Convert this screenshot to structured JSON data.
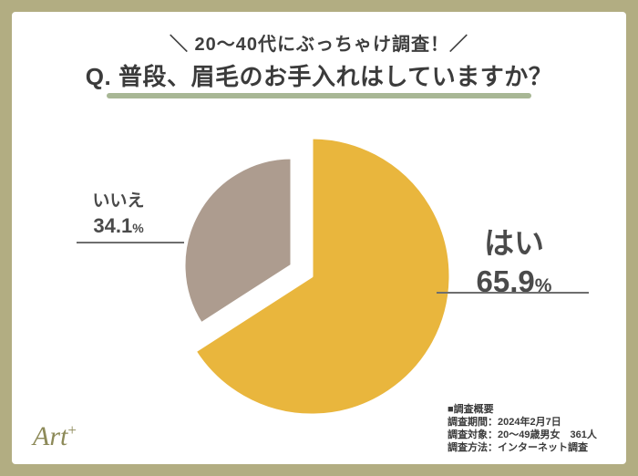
{
  "frame": {
    "border_color": "#B2AD82",
    "inner_background": "#FFFFFF"
  },
  "header": {
    "tagline": "＼ 20〜40代にぶっちゃけ調査！／",
    "title": "Q. 普段、眉毛のお手入れはしていますか？",
    "underline_color": "#A8B795"
  },
  "chart_data": {
    "type": "pie",
    "title": "Q. 普段、眉毛のお手入れはしていますか？",
    "unit": "%",
    "start_angle_deg": -90,
    "direction": "clockwise",
    "slices": [
      {
        "label": "はい",
        "value": 65.9,
        "color": "#E9B63D"
      },
      {
        "label": "いいえ",
        "value": 34.1,
        "color": "#AD9C8F"
      }
    ],
    "legend_position": "none",
    "labels_style": "exploded-callouts"
  },
  "callouts": {
    "yes": {
      "label": "はい",
      "value": "65.9",
      "unit": "%"
    },
    "no": {
      "label": "いいえ",
      "value": "34.1",
      "unit": "%"
    }
  },
  "survey": {
    "heading": "■調査概要",
    "lines": [
      "調査期間：2024年2月7日",
      "調査対象：20〜49歳男女　361人",
      "調査方法：インターネット調査"
    ]
  },
  "logo": {
    "text": "Art",
    "sup": "+"
  }
}
